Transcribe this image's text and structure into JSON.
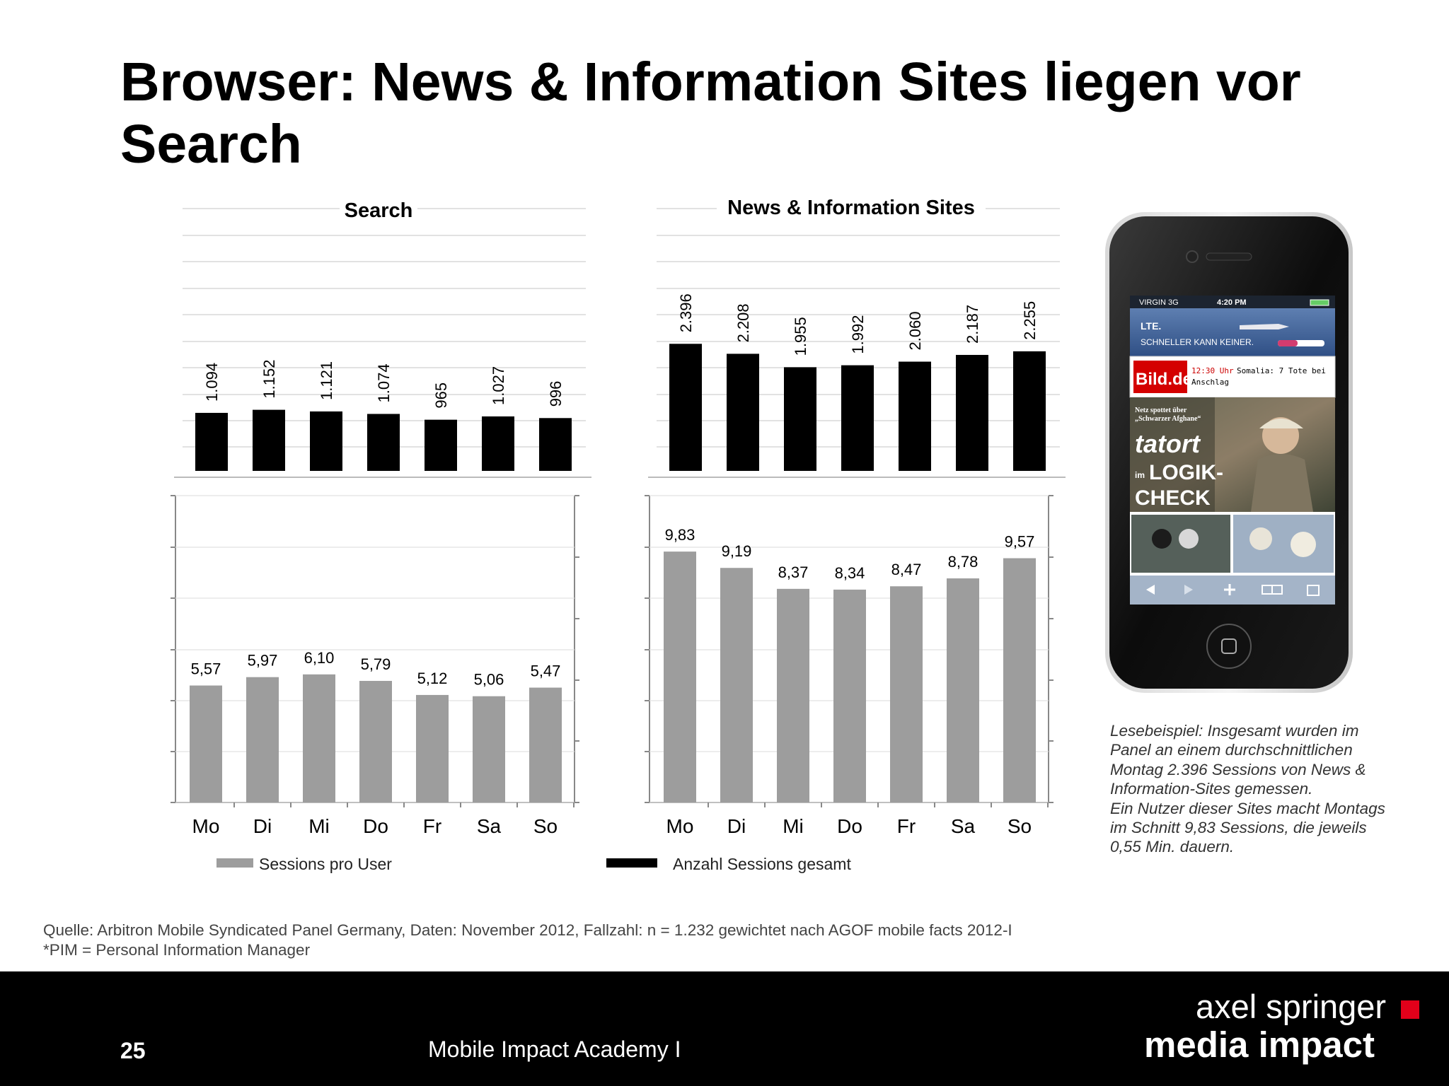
{
  "page": {
    "title": "Browser: News & Information Sites liegen vor Search",
    "note_lines": [
      "Lesebeispiel:  Insgesamt wurden im",
      "Panel  an einem durchschnittlichen",
      "Montag  2.396 Sessions von News &",
      "Information-Sites  gemessen.",
      "Ein  Nutzer dieser Sites macht  Montags",
      "im Schnitt 9,83  Sessions, die jeweils",
      "0,55  Min. dauern."
    ],
    "source_lines": [
      "Quelle: Arbitron Mobile Syndicated Panel Germany, Daten: November 2012, Fallzahl: n = 1.232 gewichtet nach AGOF mobile facts 2012-I",
      "*PIM = Personal Information Manager"
    ],
    "footer": {
      "page_number": "25",
      "center_text": "Mobile Impact Academy I",
      "brand_top": "axel springer",
      "brand_bottom": "media impact",
      "brand_color": "#e2001a"
    },
    "phone_screen": {
      "carrier": "VIRGIN 3G",
      "time": "4:20 PM",
      "ad_line1": "LTE.",
      "ad_line2": "SCHNELLER KANN KEINER.",
      "logo": "Bild.de",
      "news_time": "12:30 Uhr",
      "news_text_1": "Somalia: 7 Tote bei",
      "news_text_2": "Anschlag",
      "teaser_small_1": "Netz spottet über",
      "teaser_small_2": "„Schwarzer Afghane“",
      "teaser_big_1": "tatort",
      "teaser_big_2": "LOGIK-",
      "teaser_big_3": "CHECK",
      "teaser_im": "im"
    }
  },
  "chart_data": [
    {
      "type": "bar",
      "title": "Search",
      "categories": [
        "Mo",
        "Di",
        "Mi",
        "Do",
        "Fr",
        "Sa",
        "So"
      ],
      "series": [
        {
          "name": "Anzahl Sessions gesamt",
          "values": [
            1094,
            1152,
            1121,
            1074,
            965,
            1027,
            996
          ],
          "labels": [
            "1.094",
            "1.152",
            "1.121",
            "1.074",
            "965",
            "1.027",
            "996"
          ],
          "color": "#000000"
        },
        {
          "name": "Sessions pro User",
          "values": [
            5.57,
            5.97,
            6.1,
            5.79,
            5.12,
            5.06,
            5.47
          ],
          "labels": [
            "5,57",
            "5,97",
            "6,10",
            "5,79",
            "5,12",
            "5,06",
            "5,47"
          ],
          "color": "#9d9d9d"
        }
      ],
      "top_ylim": [
        0,
        5000
      ],
      "bottom_ylim": [
        0,
        12
      ]
    },
    {
      "type": "bar",
      "title": "News & Information Sites",
      "categories": [
        "Mo",
        "Di",
        "Mi",
        "Do",
        "Fr",
        "Sa",
        "So"
      ],
      "series": [
        {
          "name": "Anzahl Sessions gesamt",
          "values": [
            2396,
            2208,
            1955,
            1992,
            2060,
            2187,
            2255
          ],
          "labels": [
            "2.396",
            "2.208",
            "1.955",
            "1.992",
            "2.060",
            "2.187",
            "2.255"
          ],
          "color": "#000000"
        },
        {
          "name": "Sessions pro User",
          "values": [
            9.83,
            9.19,
            8.37,
            8.34,
            8.47,
            8.78,
            9.57
          ],
          "labels": [
            "9,83",
            "9,19",
            "8,37",
            "8,34",
            "8,47",
            "8,78",
            "9,57"
          ],
          "color": "#9d9d9d"
        }
      ],
      "top_ylim": [
        0,
        5000
      ],
      "bottom_ylim": [
        0,
        12
      ]
    }
  ],
  "legend": [
    {
      "label": "Sessions pro User",
      "color": "#9d9d9d"
    },
    {
      "label": "Anzahl Sessions gesamt",
      "color": "#000000"
    }
  ]
}
